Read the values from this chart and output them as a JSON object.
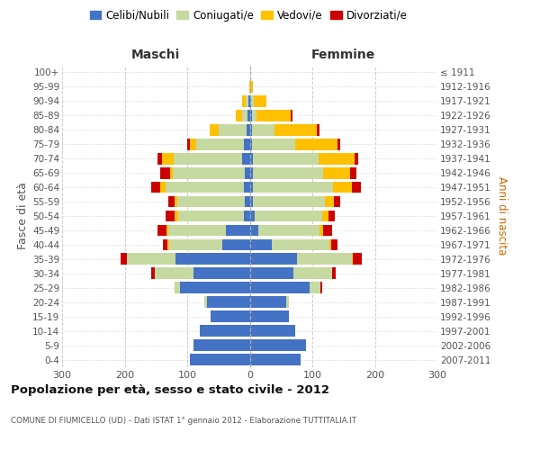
{
  "age_groups": [
    "0-4",
    "5-9",
    "10-14",
    "15-19",
    "20-24",
    "25-29",
    "30-34",
    "35-39",
    "40-44",
    "45-49",
    "50-54",
    "55-59",
    "60-64",
    "65-69",
    "70-74",
    "75-79",
    "80-84",
    "85-89",
    "90-94",
    "95-99",
    "100+"
  ],
  "birth_years": [
    "2007-2011",
    "2002-2006",
    "1997-2001",
    "1992-1996",
    "1987-1991",
    "1982-1986",
    "1977-1981",
    "1972-1976",
    "1967-1971",
    "1962-1966",
    "1957-1961",
    "1952-1956",
    "1947-1951",
    "1942-1946",
    "1937-1941",
    "1932-1936",
    "1927-1931",
    "1922-1926",
    "1917-1921",
    "1912-1916",
    "≤ 1911"
  ],
  "colors": {
    "celibi": "#4472c4",
    "coniugati": "#c5d9a0",
    "vedovi": "#ffc000",
    "divorziati": "#cc0000"
  },
  "legend_labels": [
    "Celibi/Nubili",
    "Coniugati/e",
    "Vedovi/e",
    "Divorziati/e"
  ],
  "maschi_celibi": [
    95,
    90,
    80,
    62,
    68,
    112,
    90,
    118,
    44,
    38,
    10,
    8,
    10,
    8,
    12,
    10,
    5,
    4,
    2,
    0,
    0
  ],
  "maschi_coniugati": [
    0,
    0,
    0,
    0,
    4,
    8,
    62,
    78,
    85,
    92,
    105,
    108,
    125,
    115,
    110,
    75,
    45,
    8,
    5,
    0,
    0
  ],
  "maschi_vedovi": [
    0,
    0,
    0,
    0,
    0,
    0,
    0,
    0,
    2,
    3,
    5,
    4,
    8,
    5,
    18,
    10,
    14,
    10,
    5,
    1,
    0
  ],
  "maschi_divorziati": [
    0,
    0,
    0,
    0,
    0,
    0,
    5,
    10,
    8,
    15,
    14,
    10,
    14,
    15,
    8,
    5,
    0,
    0,
    0,
    0,
    0
  ],
  "femmine_nubili": [
    82,
    90,
    72,
    62,
    58,
    95,
    70,
    75,
    35,
    14,
    8,
    5,
    5,
    5,
    5,
    4,
    4,
    3,
    2,
    0,
    0
  ],
  "femmine_coniugate": [
    0,
    0,
    0,
    0,
    5,
    18,
    62,
    88,
    92,
    98,
    108,
    115,
    128,
    112,
    105,
    68,
    35,
    8,
    5,
    0,
    0
  ],
  "femmine_vedove": [
    0,
    0,
    0,
    0,
    0,
    0,
    0,
    2,
    3,
    5,
    10,
    14,
    30,
    44,
    58,
    68,
    68,
    55,
    20,
    5,
    1
  ],
  "femmine_divorziate": [
    0,
    0,
    0,
    0,
    0,
    3,
    5,
    14,
    10,
    15,
    10,
    10,
    14,
    10,
    5,
    5,
    5,
    3,
    0,
    0,
    0
  ],
  "title": "Popolazione per età, sesso e stato civile - 2012",
  "subtitle": "COMUNE DI FIUMICELLO (UD) - Dati ISTAT 1° gennaio 2012 - Elaborazione TUTTITALIA.IT",
  "ylabel_left": "Fasce di età",
  "ylabel_right": "Anni di nascita",
  "xlim": 300
}
